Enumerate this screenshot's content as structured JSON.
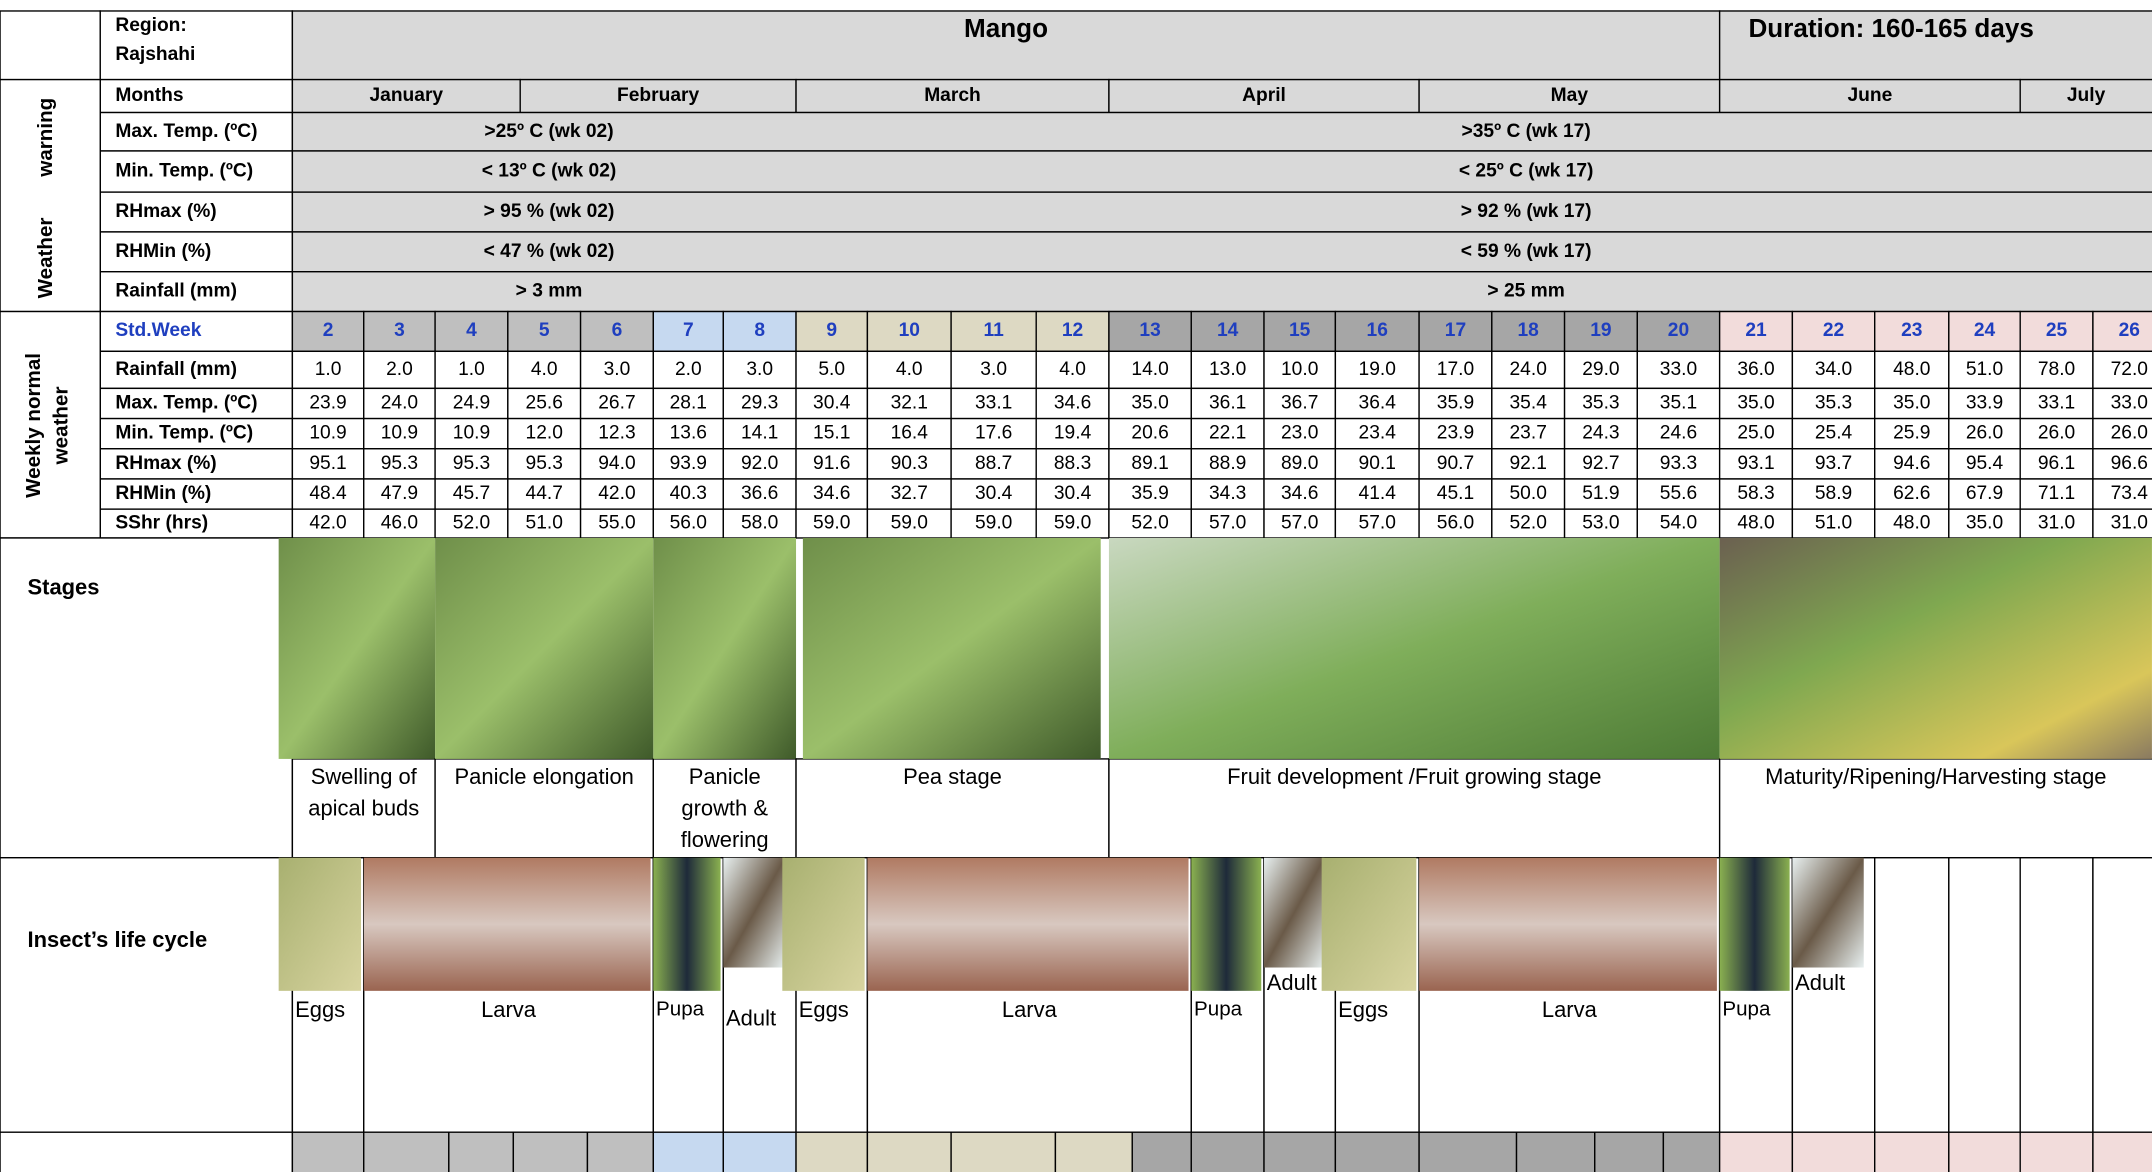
{
  "header": {
    "region_label": "Region:",
    "region": "Rajshahi",
    "title": "Mango",
    "duration": "Duration: 160-165 days"
  },
  "sections": {
    "warning": [
      "Weather",
      "warning"
    ],
    "weekly": [
      "Weekly normal",
      "weather"
    ],
    "stages": "Stages",
    "insects": "Insect’s life cycle"
  },
  "months_label": "Months",
  "months": [
    "January",
    "February",
    "March",
    "April",
    "May",
    "June",
    "July"
  ],
  "warnings": [
    {
      "label": "Max. Temp. (ºC)",
      "early": ">25º C (wk 02)",
      "late": ">35º C (wk 17)"
    },
    {
      "label": "Min. Temp. (ºC)",
      "early": "< 13º C (wk 02)",
      "late": "< 25º C (wk 17)"
    },
    {
      "label": "RHmax (%)",
      "early": "> 95 %  (wk 02)",
      "late": "> 92 %  (wk 17)"
    },
    {
      "label": "RHMin (%)",
      "early": "< 47 %  (wk 02)",
      "late": "< 59 %  (wk 17)"
    },
    {
      "label": "Rainfall (mm)",
      "early": "> 3 mm",
      "late": "> 25 mm"
    }
  ],
  "weeks_label": "Std.Week",
  "weeks": [
    "2",
    "3",
    "4",
    "5",
    "6",
    "7",
    "8",
    "9",
    "10",
    "11",
    "12",
    "13",
    "14",
    "15",
    "16",
    "17",
    "18",
    "19",
    "20",
    "21",
    "22",
    "23",
    "24",
    "25",
    "26"
  ],
  "weather": [
    {
      "label": "Rainfall (mm)",
      "values": [
        "1.0",
        "2.0",
        "1.0",
        "4.0",
        "3.0",
        "2.0",
        "3.0",
        "5.0",
        "4.0",
        "3.0",
        "4.0",
        "14.0",
        "13.0",
        "10.0",
        "19.0",
        "17.0",
        "24.0",
        "29.0",
        "33.0",
        "36.0",
        "34.0",
        "48.0",
        "51.0",
        "78.0",
        "72.0"
      ]
    },
    {
      "label": "Max. Temp. (ºC)",
      "values": [
        "23.9",
        "24.0",
        "24.9",
        "25.6",
        "26.7",
        "28.1",
        "29.3",
        "30.4",
        "32.1",
        "33.1",
        "34.6",
        "35.0",
        "36.1",
        "36.7",
        "36.4",
        "35.9",
        "35.4",
        "35.3",
        "35.1",
        "35.0",
        "35.3",
        "35.0",
        "33.9",
        "33.1",
        "33.0"
      ]
    },
    {
      "label": "Min. Temp. (ºC)",
      "values": [
        "10.9",
        "10.9",
        "10.9",
        "12.0",
        "12.3",
        "13.6",
        "14.1",
        "15.1",
        "16.4",
        "17.6",
        "19.4",
        "20.6",
        "22.1",
        "23.0",
        "23.4",
        "23.9",
        "23.7",
        "24.3",
        "24.6",
        "25.0",
        "25.4",
        "25.9",
        "26.0",
        "26.0",
        "26.0"
      ]
    },
    {
      "label": "RHmax (%)",
      "values": [
        "95.1",
        "95.3",
        "95.3",
        "95.3",
        "94.0",
        "93.9",
        "92.0",
        "91.6",
        "90.3",
        "88.7",
        "88.3",
        "89.1",
        "88.9",
        "89.0",
        "90.1",
        "90.7",
        "92.1",
        "92.7",
        "93.3",
        "93.1",
        "93.7",
        "94.6",
        "95.4",
        "96.1",
        "96.6"
      ]
    },
    {
      "label": "RHMin (%)",
      "values": [
        "48.4",
        "47.9",
        "45.7",
        "44.7",
        "42.0",
        "40.3",
        "36.6",
        "34.6",
        "32.7",
        "30.4",
        "30.4",
        "35.9",
        "34.3",
        "34.6",
        "41.4",
        "45.1",
        "50.0",
        "51.9",
        "55.6",
        "58.3",
        "58.9",
        "62.6",
        "67.9",
        "71.1",
        "73.4"
      ]
    },
    {
      "label": "SShr (hrs)",
      "values": [
        "42.0",
        "46.0",
        "52.0",
        "51.0",
        "55.0",
        "56.0",
        "58.0",
        "59.0",
        "59.0",
        "59.0",
        "59.0",
        "52.0",
        "57.0",
        "57.0",
        "57.0",
        "56.0",
        "52.0",
        "53.0",
        "54.0",
        "48.0",
        "51.0",
        "48.0",
        "35.0",
        "31.0",
        "31.0"
      ]
    }
  ],
  "stages": [
    [
      "Swelling of",
      "apical buds"
    ],
    [
      "Panicle elongation"
    ],
    [
      "Panicle",
      "growth &",
      "flowering"
    ],
    [
      "Pea stage"
    ],
    [
      "Fruit development /Fruit growing stage"
    ],
    [
      "Maturity/Ripening/Harvesting stage"
    ]
  ],
  "insects": [
    "Eggs",
    "Larva",
    "Pupa",
    "Adult",
    "Eggs",
    "Larva",
    "Pupa",
    "Adult",
    "Eggs",
    "Larva",
    "Pupa",
    "Adult"
  ]
}
